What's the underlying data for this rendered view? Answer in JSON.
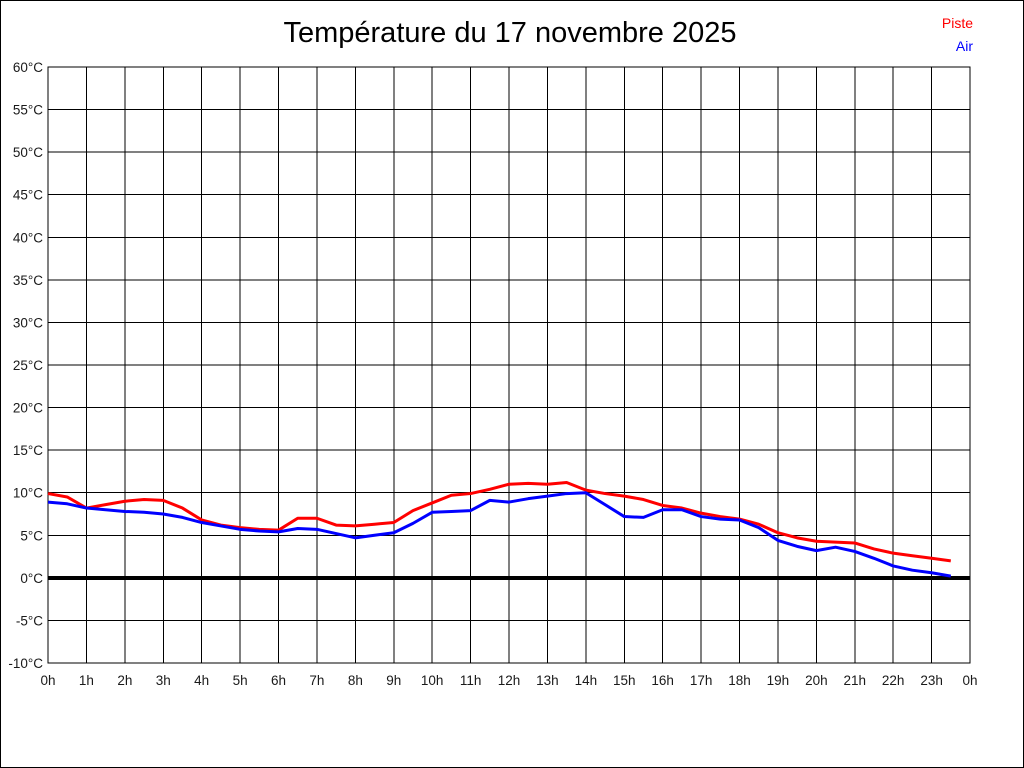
{
  "window": {
    "background": "#ffffff",
    "border_color": "#000000"
  },
  "chart_data": {
    "type": "line",
    "title": "Température du 17 novembre 2025",
    "xlabel": "",
    "ylabel": "",
    "xlim": [
      0,
      24
    ],
    "ylim": [
      -10,
      60
    ],
    "grid": true,
    "grid_color": "#000000",
    "zero_line": {
      "value": 0,
      "color": "#000000",
      "width": 4
    },
    "legend_position": "top-right",
    "x_tick_values": [
      0,
      1,
      2,
      3,
      4,
      5,
      6,
      7,
      8,
      9,
      10,
      11,
      12,
      13,
      14,
      15,
      16,
      17,
      18,
      19,
      20,
      21,
      22,
      23,
      24
    ],
    "x_tick_labels": [
      "0h",
      "1h",
      "2h",
      "3h",
      "4h",
      "5h",
      "6h",
      "7h",
      "8h",
      "9h",
      "10h",
      "11h",
      "12h",
      "13h",
      "14h",
      "15h",
      "16h",
      "17h",
      "18h",
      "19h",
      "20h",
      "21h",
      "22h",
      "23h",
      "0h"
    ],
    "y_tick_values": [
      60,
      55,
      50,
      45,
      40,
      35,
      30,
      25,
      20,
      15,
      10,
      5,
      0,
      -5,
      -10
    ],
    "y_tick_labels": [
      "60°C",
      "55°C",
      "50°C",
      "45°C",
      "40°C",
      "35°C",
      "30°C",
      "25°C",
      "20°C",
      "15°C",
      "10°C",
      "5°C",
      "0°C",
      "-5°C",
      "-10°C"
    ],
    "x": [
      0,
      0.5,
      1,
      1.5,
      2,
      2.5,
      3,
      3.5,
      4,
      4.5,
      5,
      5.5,
      6,
      6.5,
      7,
      7.5,
      8,
      8.5,
      9,
      9.5,
      10,
      10.5,
      11,
      11.5,
      12,
      12.5,
      13,
      13.5,
      14,
      14.5,
      15,
      15.5,
      16,
      16.5,
      17,
      17.5,
      18,
      18.5,
      19,
      19.5,
      20,
      20.5,
      21,
      21.5,
      22,
      22.5,
      23,
      23.5
    ],
    "series": [
      {
        "name": "Piste",
        "color": "#ff0000",
        "line_width": 3,
        "values": [
          9.9,
          9.5,
          8.2,
          8.6,
          9.0,
          9.2,
          9.1,
          8.2,
          6.8,
          6.2,
          5.9,
          5.7,
          5.6,
          7.0,
          7.0,
          6.2,
          6.1,
          6.3,
          6.5,
          7.9,
          8.8,
          9.7,
          9.9,
          10.4,
          11.0,
          11.1,
          11.0,
          11.2,
          10.3,
          9.9,
          9.6,
          9.2,
          8.5,
          8.2,
          7.6,
          7.2,
          6.9,
          6.3,
          5.3,
          4.7,
          4.3,
          4.2,
          4.1,
          3.4,
          2.9,
          2.6,
          2.3,
          2.0
        ]
      },
      {
        "name": "Air",
        "color": "#0000ff",
        "line_width": 3,
        "values": [
          8.9,
          8.7,
          8.2,
          8.0,
          7.8,
          7.7,
          7.5,
          7.1,
          6.5,
          6.1,
          5.7,
          5.5,
          5.4,
          5.8,
          5.7,
          5.2,
          4.7,
          5.0,
          5.3,
          6.4,
          7.7,
          7.8,
          7.9,
          9.1,
          8.9,
          9.3,
          9.6,
          9.9,
          10.0,
          8.6,
          7.2,
          7.1,
          8.0,
          8.0,
          7.2,
          6.9,
          6.8,
          5.9,
          4.4,
          3.7,
          3.2,
          3.6,
          3.1,
          2.3,
          1.4,
          0.9,
          0.6,
          0.2
        ]
      }
    ]
  }
}
